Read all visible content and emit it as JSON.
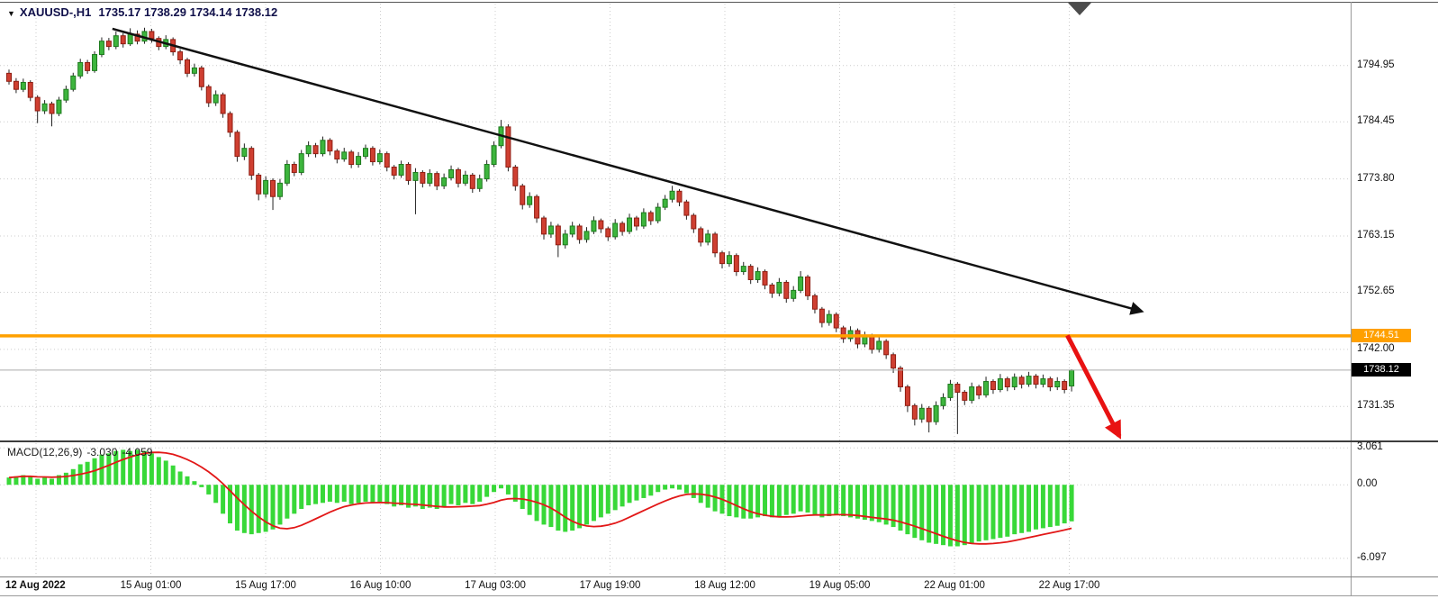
{
  "header": {
    "collapse_icon": "▼",
    "title": "XAUUSD-,H1",
    "ohlc": "1735.17 1738.29 1734.14 1738.12"
  },
  "price_axis": {
    "labels": [
      "1794.95",
      "1784.45",
      "1773.80",
      "1763.15",
      "1752.65",
      "1742.00",
      "1731.35"
    ],
    "active_line_tag": "1744.51",
    "bid_tag": "1738.12"
  },
  "time_axis": {
    "labels": [
      "12 Aug 2022",
      "15 Aug 01:00",
      "15 Aug 17:00",
      "16 Aug 10:00",
      "17 Aug 03:00",
      "17 Aug 19:00",
      "18 Aug 12:00",
      "19 Aug 05:00",
      "22 Aug 01:00",
      "22 Aug 17:00"
    ]
  },
  "macd_panel": {
    "label": "MACD(12,26,9)",
    "value": "-3.030",
    "signal_value": "-4.059",
    "scale_labels": [
      "3.061",
      "0.00",
      "-6.097"
    ]
  },
  "colors": {
    "bull": "#3db53d",
    "bull_border": "#1d7a1d",
    "bear": "#cf3f31",
    "bear_border": "#8f1d12",
    "wick": "#222222",
    "histogram": "#38d838",
    "signal": "#e21717",
    "grid": "#cccccc",
    "hline": "#ffa000",
    "trendline": "#111111",
    "arrow": "#e81212",
    "tag_active": "#ffa000",
    "tag_current": "#000000"
  },
  "chart_data": [
    {
      "type": "candlestick",
      "symbol": "XAUUSD-",
      "timeframe": "H1",
      "ylim": [
        1725.0,
        1806.5
      ],
      "x_labels": [
        "12 Aug 2022",
        "15 Aug 01:00",
        "15 Aug 17:00",
        "16 Aug 10:00",
        "17 Aug 03:00",
        "17 Aug 19:00",
        "18 Aug 12:00",
        "19 Aug 05:00",
        "22 Aug 01:00",
        "22 Aug 17:00"
      ],
      "grid_prices": [
        1794.95,
        1784.45,
        1773.8,
        1763.15,
        1752.65,
        1742.0,
        1731.35
      ],
      "annotations": {
        "trendline": {
          "type": "arrow-line",
          "color": "#111111",
          "from_bar": 14.5,
          "from_price": 1801.8,
          "to_bar": 158.8,
          "to_price": 1749.1
        },
        "down_arrow": {
          "type": "arrow",
          "color": "#e81212",
          "from_bar": 148.4,
          "from_price": 1744.6,
          "to_bar": 155.7,
          "to_price": 1725.8
        },
        "horizontal_line": {
          "price": 1744.51,
          "color": "#ffa000"
        },
        "current_price_line": {
          "price": 1738.12,
          "color": "#aaaaaa"
        }
      },
      "ohlc": [
        [
          1793.5,
          1794.2,
          1791.4,
          1792.0
        ],
        [
          1792.0,
          1792.6,
          1789.8,
          1790.5
        ],
        [
          1790.5,
          1792.5,
          1790.0,
          1791.8
        ],
        [
          1791.8,
          1792.2,
          1788.3,
          1789.0
        ],
        [
          1789.0,
          1789.4,
          1784.2,
          1786.5
        ],
        [
          1786.5,
          1788.5,
          1785.9,
          1787.8
        ],
        [
          1787.8,
          1788.2,
          1783.6,
          1786.0
        ],
        [
          1786.0,
          1789.1,
          1785.5,
          1788.5
        ],
        [
          1788.5,
          1791.2,
          1788.0,
          1790.5
        ],
        [
          1790.5,
          1793.6,
          1790.1,
          1793.0
        ],
        [
          1793.0,
          1796.2,
          1792.5,
          1795.5
        ],
        [
          1795.5,
          1796.0,
          1793.4,
          1794.0
        ],
        [
          1794.0,
          1797.6,
          1793.6,
          1797.0
        ],
        [
          1797.0,
          1800.2,
          1796.5,
          1799.5
        ],
        [
          1799.5,
          1800.1,
          1797.8,
          1798.5
        ],
        [
          1798.5,
          1801.3,
          1798.0,
          1800.5
        ],
        [
          1800.5,
          1801.0,
          1798.3,
          1799.0
        ],
        [
          1799.0,
          1801.9,
          1798.6,
          1800.8
        ],
        [
          1800.8,
          1801.5,
          1798.9,
          1799.5
        ],
        [
          1799.5,
          1802.0,
          1799.0,
          1801.3
        ],
        [
          1801.3,
          1801.8,
          1799.2,
          1800.0
        ],
        [
          1800.0,
          1800.4,
          1797.8,
          1798.5
        ],
        [
          1798.5,
          1800.6,
          1798.0,
          1799.8
        ],
        [
          1799.8,
          1800.2,
          1796.8,
          1797.5
        ],
        [
          1797.5,
          1798.0,
          1795.2,
          1796.0
        ],
        [
          1796.0,
          1796.4,
          1792.8,
          1793.5
        ],
        [
          1793.5,
          1795.3,
          1792.9,
          1794.5
        ],
        [
          1794.5,
          1794.9,
          1790.3,
          1791.0
        ],
        [
          1791.0,
          1791.4,
          1787.2,
          1788.0
        ],
        [
          1788.0,
          1790.3,
          1787.4,
          1789.5
        ],
        [
          1789.5,
          1789.9,
          1785.2,
          1786.0
        ],
        [
          1786.0,
          1786.4,
          1781.6,
          1782.5
        ],
        [
          1782.5,
          1782.9,
          1777.0,
          1778.0
        ],
        [
          1778.0,
          1780.4,
          1777.3,
          1779.5
        ],
        [
          1779.5,
          1779.9,
          1773.6,
          1774.5
        ],
        [
          1774.5,
          1774.9,
          1769.8,
          1771.0
        ],
        [
          1771.0,
          1774.3,
          1770.3,
          1773.5
        ],
        [
          1773.5,
          1773.9,
          1768.0,
          1770.5
        ],
        [
          1770.5,
          1773.8,
          1769.9,
          1773.0
        ],
        [
          1773.0,
          1777.3,
          1772.5,
          1776.5
        ],
        [
          1776.5,
          1777.0,
          1774.3,
          1775.0
        ],
        [
          1775.0,
          1779.2,
          1774.5,
          1778.5
        ],
        [
          1778.5,
          1780.8,
          1777.9,
          1780.0
        ],
        [
          1780.0,
          1780.5,
          1777.8,
          1778.5
        ],
        [
          1778.5,
          1781.7,
          1778.0,
          1781.0
        ],
        [
          1781.0,
          1781.4,
          1778.2,
          1779.0
        ],
        [
          1779.0,
          1779.4,
          1776.7,
          1777.5
        ],
        [
          1777.5,
          1779.6,
          1777.0,
          1778.8
        ],
        [
          1778.8,
          1779.2,
          1775.8,
          1776.5
        ],
        [
          1776.5,
          1778.8,
          1775.9,
          1778.0
        ],
        [
          1778.0,
          1780.2,
          1777.5,
          1779.5
        ],
        [
          1779.5,
          1779.9,
          1776.3,
          1777.0
        ],
        [
          1777.0,
          1779.3,
          1776.5,
          1778.5
        ],
        [
          1778.5,
          1778.9,
          1775.2,
          1776.0
        ],
        [
          1776.0,
          1776.4,
          1773.7,
          1774.5
        ],
        [
          1774.5,
          1777.2,
          1774.0,
          1776.5
        ],
        [
          1776.5,
          1776.9,
          1772.7,
          1773.5
        ],
        [
          1773.5,
          1775.8,
          1767.2,
          1775.0
        ],
        [
          1775.0,
          1775.4,
          1772.2,
          1773.0
        ],
        [
          1773.0,
          1775.6,
          1772.4,
          1774.8
        ],
        [
          1774.8,
          1775.2,
          1771.7,
          1772.5
        ],
        [
          1772.5,
          1774.8,
          1771.9,
          1774.0
        ],
        [
          1774.0,
          1776.3,
          1773.5,
          1775.5
        ],
        [
          1775.5,
          1775.9,
          1772.2,
          1773.0
        ],
        [
          1773.0,
          1775.3,
          1772.5,
          1774.5
        ],
        [
          1774.5,
          1774.9,
          1771.2,
          1772.0
        ],
        [
          1772.0,
          1774.6,
          1771.4,
          1773.8
        ],
        [
          1773.8,
          1777.3,
          1773.3,
          1776.5
        ],
        [
          1776.5,
          1780.8,
          1776.0,
          1780.0
        ],
        [
          1780.0,
          1784.8,
          1779.5,
          1783.5
        ],
        [
          1783.5,
          1784.0,
          1775.2,
          1776.0
        ],
        [
          1776.0,
          1776.4,
          1771.6,
          1772.5
        ],
        [
          1772.5,
          1772.9,
          1768.1,
          1769.0
        ],
        [
          1769.0,
          1771.3,
          1768.4,
          1770.5
        ],
        [
          1770.5,
          1770.9,
          1765.6,
          1766.5
        ],
        [
          1766.5,
          1766.9,
          1762.5,
          1763.5
        ],
        [
          1763.5,
          1765.8,
          1762.8,
          1765.0
        ],
        [
          1765.0,
          1765.4,
          1759.2,
          1761.5
        ],
        [
          1761.5,
          1764.3,
          1760.8,
          1763.5
        ],
        [
          1763.5,
          1765.8,
          1762.9,
          1765.0
        ],
        [
          1765.0,
          1765.4,
          1761.7,
          1762.5
        ],
        [
          1762.5,
          1764.8,
          1761.9,
          1764.0
        ],
        [
          1764.0,
          1766.8,
          1763.5,
          1766.0
        ],
        [
          1766.0,
          1766.4,
          1763.7,
          1764.5
        ],
        [
          1764.5,
          1764.9,
          1762.2,
          1763.0
        ],
        [
          1763.0,
          1766.3,
          1762.5,
          1765.5
        ],
        [
          1765.5,
          1765.9,
          1763.2,
          1764.0
        ],
        [
          1764.0,
          1767.3,
          1763.5,
          1766.5
        ],
        [
          1766.5,
          1766.9,
          1764.2,
          1765.0
        ],
        [
          1765.0,
          1768.3,
          1764.5,
          1767.5
        ],
        [
          1767.5,
          1767.9,
          1765.2,
          1766.0
        ],
        [
          1766.0,
          1769.3,
          1765.5,
          1768.5
        ],
        [
          1768.5,
          1770.8,
          1768.0,
          1770.0
        ],
        [
          1770.0,
          1772.5,
          1769.4,
          1771.5
        ],
        [
          1771.5,
          1771.9,
          1768.7,
          1769.5
        ],
        [
          1769.5,
          1769.9,
          1766.2,
          1767.0
        ],
        [
          1767.0,
          1767.4,
          1763.7,
          1764.5
        ],
        [
          1764.5,
          1764.9,
          1761.2,
          1762.0
        ],
        [
          1762.0,
          1764.3,
          1761.4,
          1763.5
        ],
        [
          1763.5,
          1763.9,
          1759.2,
          1760.0
        ],
        [
          1760.0,
          1760.4,
          1757.1,
          1758.0
        ],
        [
          1758.0,
          1760.3,
          1757.4,
          1759.5
        ],
        [
          1759.5,
          1759.9,
          1755.7,
          1756.5
        ],
        [
          1756.5,
          1758.3,
          1755.9,
          1757.5
        ],
        [
          1757.5,
          1757.9,
          1754.2,
          1755.0
        ],
        [
          1755.0,
          1757.3,
          1754.4,
          1756.5
        ],
        [
          1756.5,
          1756.9,
          1753.2,
          1754.0
        ],
        [
          1754.0,
          1754.4,
          1751.6,
          1752.5
        ],
        [
          1752.5,
          1755.3,
          1751.9,
          1754.5
        ],
        [
          1754.5,
          1754.9,
          1750.7,
          1751.5
        ],
        [
          1751.5,
          1753.8,
          1750.9,
          1753.0
        ],
        [
          1753.0,
          1756.6,
          1752.5,
          1755.5
        ],
        [
          1755.5,
          1755.9,
          1751.2,
          1752.0
        ],
        [
          1752.0,
          1752.4,
          1748.7,
          1749.5
        ],
        [
          1749.5,
          1749.9,
          1746.1,
          1747.0
        ],
        [
          1747.0,
          1749.3,
          1746.4,
          1748.5
        ],
        [
          1748.5,
          1748.9,
          1745.2,
          1746.0
        ],
        [
          1746.0,
          1746.4,
          1743.2,
          1744.0
        ],
        [
          1744.0,
          1746.3,
          1743.4,
          1745.5
        ],
        [
          1745.5,
          1745.9,
          1742.2,
          1743.0
        ],
        [
          1743.0,
          1745.3,
          1742.4,
          1744.5
        ],
        [
          1744.5,
          1744.9,
          1741.2,
          1742.0
        ],
        [
          1742.0,
          1744.3,
          1741.4,
          1743.5
        ],
        [
          1743.5,
          1743.9,
          1740.2,
          1741.0
        ],
        [
          1741.0,
          1741.4,
          1737.6,
          1738.5
        ],
        [
          1738.5,
          1738.9,
          1734.1,
          1735.0
        ],
        [
          1735.0,
          1735.4,
          1730.3,
          1731.5
        ],
        [
          1731.5,
          1731.9,
          1727.8,
          1729.0
        ],
        [
          1729.0,
          1731.8,
          1728.3,
          1731.0
        ],
        [
          1731.0,
          1731.4,
          1726.5,
          1728.5
        ],
        [
          1728.5,
          1732.3,
          1727.9,
          1731.5
        ],
        [
          1731.5,
          1733.8,
          1730.8,
          1733.0
        ],
        [
          1733.0,
          1736.3,
          1732.4,
          1735.5
        ],
        [
          1735.5,
          1735.9,
          1726.2,
          1734.0
        ],
        [
          1734.0,
          1734.4,
          1731.6,
          1732.5
        ],
        [
          1732.5,
          1735.8,
          1731.9,
          1735.0
        ],
        [
          1735.0,
          1735.4,
          1732.7,
          1733.5
        ],
        [
          1733.5,
          1736.9,
          1733.0,
          1736.0
        ],
        [
          1736.0,
          1736.4,
          1733.7,
          1734.5
        ],
        [
          1734.5,
          1737.4,
          1734.0,
          1736.5
        ],
        [
          1736.5,
          1736.9,
          1734.2,
          1735.0
        ],
        [
          1735.0,
          1737.5,
          1734.4,
          1736.8
        ],
        [
          1736.8,
          1737.2,
          1734.7,
          1735.5
        ],
        [
          1735.5,
          1737.8,
          1735.0,
          1737.0
        ],
        [
          1737.0,
          1737.4,
          1734.7,
          1735.5
        ],
        [
          1735.5,
          1737.3,
          1734.9,
          1736.5
        ],
        [
          1736.5,
          1736.9,
          1734.2,
          1735.0
        ],
        [
          1735.0,
          1736.8,
          1734.4,
          1736.0
        ],
        [
          1736.0,
          1736.4,
          1733.8,
          1734.5
        ],
        [
          1735.17,
          1738.29,
          1734.14,
          1738.12
        ]
      ]
    },
    {
      "type": "bar",
      "name": "MACD(12,26,9)",
      "signal_period": 9,
      "last_value": -3.03,
      "last_signal": -4.059,
      "ylim": [
        -7.6,
        3.45
      ],
      "ticks": [
        3.061,
        0.0,
        -6.097
      ],
      "values": [
        0.6,
        0.7,
        0.8,
        0.7,
        0.5,
        0.6,
        0.5,
        0.8,
        1.0,
        1.3,
        1.7,
        1.9,
        2.2,
        2.5,
        2.6,
        2.8,
        2.9,
        2.8,
        2.9,
        2.8,
        2.6,
        2.3,
        2.0,
        1.6,
        1.1,
        0.7,
        0.3,
        -0.2,
        -0.8,
        -1.5,
        -2.4,
        -3.2,
        -3.8,
        -4.0,
        -4.1,
        -4.0,
        -3.9,
        -3.7,
        -3.3,
        -2.8,
        -2.4,
        -2.0,
        -1.7,
        -1.6,
        -1.5,
        -1.4,
        -1.5,
        -1.4,
        -1.6,
        -1.5,
        -1.4,
        -1.5,
        -1.4,
        -1.6,
        -1.8,
        -1.7,
        -1.9,
        -1.8,
        -2.0,
        -1.9,
        -2.0,
        -1.8,
        -1.6,
        -1.7,
        -1.5,
        -1.6,
        -1.4,
        -1.0,
        -0.6,
        -0.3,
        -0.8,
        -1.4,
        -2.0,
        -2.5,
        -3.0,
        -3.3,
        -3.5,
        -3.8,
        -3.9,
        -3.8,
        -3.6,
        -3.3,
        -3.0,
        -2.7,
        -2.4,
        -2.1,
        -1.8,
        -1.5,
        -1.3,
        -1.1,
        -0.9,
        -0.6,
        -0.4,
        -0.3,
        -0.4,
        -0.7,
        -1.1,
        -1.5,
        -1.9,
        -2.2,
        -2.4,
        -2.6,
        -2.7,
        -2.8,
        -2.8,
        -2.7,
        -2.6,
        -2.7,
        -2.6,
        -2.5,
        -2.4,
        -2.2,
        -2.3,
        -2.5,
        -2.7,
        -2.6,
        -2.5,
        -2.6,
        -2.7,
        -2.8,
        -2.9,
        -3.0,
        -3.1,
        -3.3,
        -3.5,
        -3.8,
        -4.1,
        -4.4,
        -4.6,
        -4.8,
        -4.9,
        -5.0,
        -5.1,
        -5.1,
        -5.0,
        -4.9,
        -4.7,
        -4.6,
        -4.5,
        -4.4,
        -4.3,
        -4.1,
        -4.0,
        -3.9,
        -3.7,
        -3.6,
        -3.5,
        -3.4,
        -3.2,
        -3.03
      ]
    }
  ]
}
